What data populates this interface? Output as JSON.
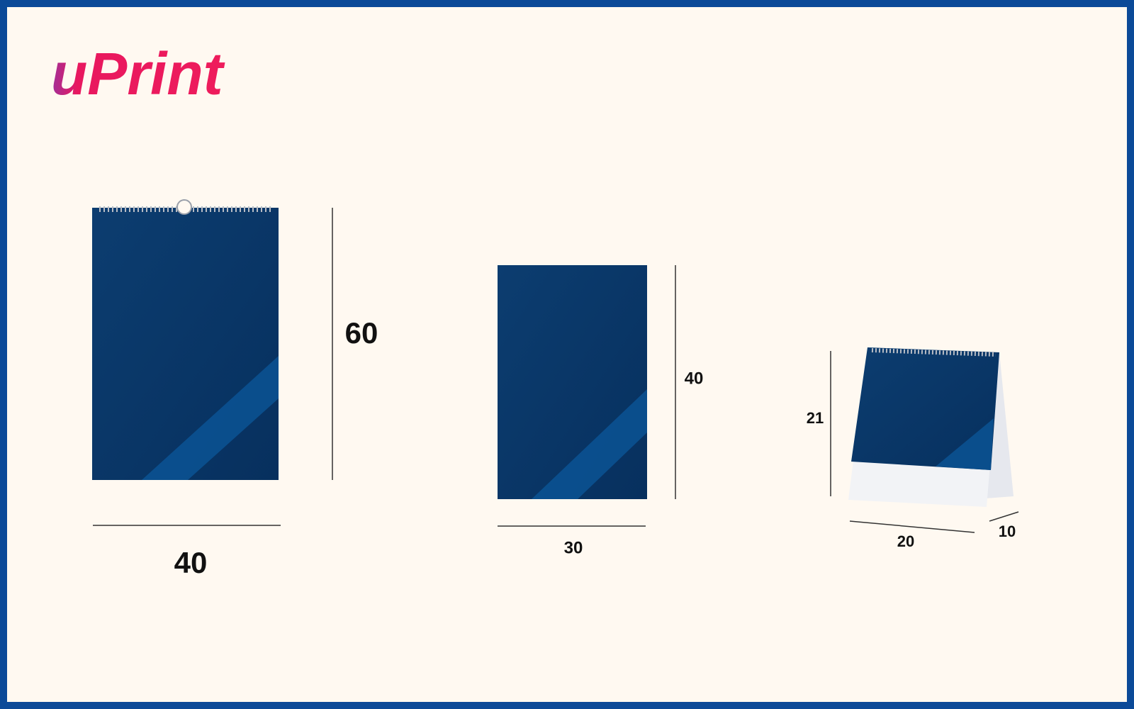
{
  "logo": "uPrint",
  "items": [
    {
      "width": "40",
      "height": "60"
    },
    {
      "width": "30",
      "height": "40"
    },
    {
      "width": "20",
      "height": "21",
      "depth": "10"
    }
  ]
}
